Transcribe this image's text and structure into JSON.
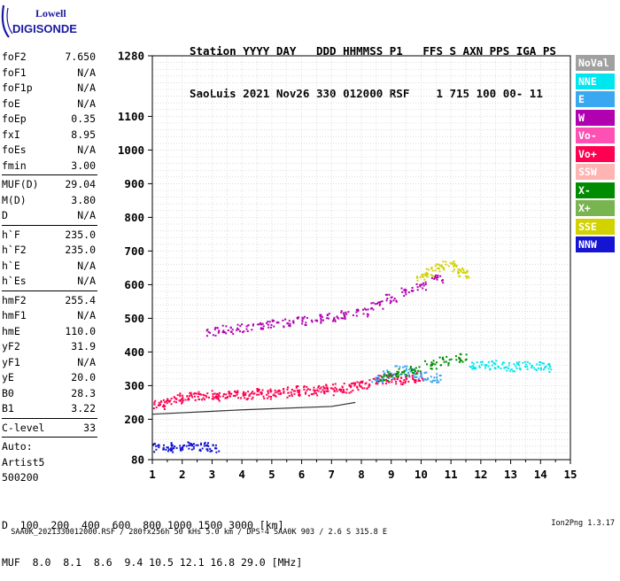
{
  "logo": {
    "top": "Lowell",
    "bottom": "DIGISONDE"
  },
  "header": {
    "line1": "Station YYYY DAY   DDD HHMMSS P1   FFS S AXN PPS IGA PS",
    "line2": "SaoLuis 2021 Nov26 330 012000 RSF    1 715 100 00- 11"
  },
  "params": {
    "group1": [
      {
        "label": "foF2",
        "value": "7.650"
      },
      {
        "label": "foF1",
        "value": "N/A"
      },
      {
        "label": "foF1p",
        "value": "N/A"
      },
      {
        "label": "foE",
        "value": "N/A"
      },
      {
        "label": "foEp",
        "value": "0.35"
      },
      {
        "label": "fxI",
        "value": "8.95"
      },
      {
        "label": "foEs",
        "value": "N/A"
      },
      {
        "label": "fmin",
        "value": "3.00"
      }
    ],
    "group2": [
      {
        "label": "MUF(D)",
        "value": "29.04"
      },
      {
        "label": "M(D)",
        "value": "3.80"
      },
      {
        "label": "D",
        "value": "N/A"
      }
    ],
    "group3": [
      {
        "label": "h`F",
        "value": "235.0"
      },
      {
        "label": "h`F2",
        "value": "235.0"
      },
      {
        "label": "h`E",
        "value": "N/A"
      },
      {
        "label": "h`Es",
        "value": "N/A"
      }
    ],
    "group4": [
      {
        "label": "hmF2",
        "value": "255.4"
      },
      {
        "label": "hmF1",
        "value": "N/A"
      },
      {
        "label": "hmE",
        "value": "110.0"
      },
      {
        "label": "yF2",
        "value": "31.9"
      },
      {
        "label": "yF1",
        "value": "N/A"
      },
      {
        "label": "yE",
        "value": "20.0"
      },
      {
        "label": "B0",
        "value": "28.3"
      },
      {
        "label": "B1",
        "value": "3.22"
      }
    ],
    "clevel": {
      "label": "C-level",
      "value": "33"
    },
    "auto": [
      "Auto:",
      "Artist5",
      "500200"
    ]
  },
  "legend": [
    {
      "label": "NoVal",
      "color": "#a0a0a0"
    },
    {
      "label": "NNE",
      "color": "#00e6f0"
    },
    {
      "label": "E",
      "color": "#3aa8f0"
    },
    {
      "label": "W",
      "color": "#b000b0"
    },
    {
      "label": "Vo-",
      "color": "#ff50b4"
    },
    {
      "label": "Vo+",
      "color": "#ff0050"
    },
    {
      "label": "SSW",
      "color": "#ffb4b4"
    },
    {
      "label": "X-",
      "color": "#008c00"
    },
    {
      "label": "X+",
      "color": "#78b450"
    },
    {
      "label": "SSE",
      "color": "#d2d200"
    },
    {
      "label": "NNW",
      "color": "#1414d2"
    }
  ],
  "chart_data": {
    "type": "scatter",
    "title": "",
    "xlabel": "",
    "ylabel": "",
    "xlim": [
      1,
      15
    ],
    "ylim": [
      80,
      1280
    ],
    "grid": true,
    "legend_position": "right",
    "x_ticks": [
      1,
      2,
      3,
      4,
      5,
      6,
      7,
      8,
      9,
      10,
      11,
      12,
      13,
      14,
      15
    ],
    "y_ticks": [
      80,
      200,
      300,
      400,
      500,
      600,
      700,
      800,
      900,
      1000,
      1100,
      1280
    ],
    "series": [
      {
        "name": "Vo+",
        "x": [
          1.2,
          1.5,
          1.8,
          2.1,
          2.4,
          2.7,
          3.0,
          3.3,
          3.6,
          3.9,
          4.2,
          4.5,
          4.8,
          5.1,
          5.4,
          5.7,
          6.0,
          6.3,
          6.6,
          6.9,
          7.2,
          7.5,
          7.8,
          8.1,
          8.4,
          8.7,
          9.0,
          9.3,
          9.6,
          9.9
        ],
        "y": [
          245,
          252,
          262,
          270,
          268,
          272,
          276,
          268,
          272,
          278,
          274,
          280,
          276,
          282,
          286,
          280,
          288,
          284,
          292,
          286,
          296,
          292,
          300,
          306,
          314,
          320,
          326,
          318,
          322,
          328
        ]
      },
      {
        "name": "W",
        "x": [
          3.0,
          3.5,
          4.0,
          4.5,
          5.0,
          5.5,
          6.0,
          6.5,
          7.0,
          7.5,
          8.0,
          8.5,
          9.0,
          9.5,
          10.0,
          10.5
        ],
        "y": [
          462,
          468,
          472,
          478,
          484,
          488,
          494,
          500,
          506,
          512,
          520,
          540,
          560,
          580,
          600,
          620
        ]
      },
      {
        "name": "SSE",
        "x": [
          10.0,
          10.3,
          10.6,
          10.9,
          11.2,
          11.4
        ],
        "y": [
          625,
          640,
          650,
          660,
          648,
          635
        ]
      },
      {
        "name": "NNE",
        "x": [
          11.8,
          12.2,
          12.6,
          13.0,
          13.4,
          13.8,
          14.2
        ],
        "y": [
          360,
          362,
          365,
          358,
          362,
          360,
          356
        ]
      },
      {
        "name": "NNW",
        "x": [
          1.2,
          1.5,
          1.8,
          2.1,
          2.4,
          2.7,
          3.0
        ],
        "y": [
          118,
          120,
          116,
          122,
          118,
          120,
          117
        ]
      },
      {
        "name": "E",
        "x": [
          8.5,
          8.9,
          9.3,
          9.7,
          10.1,
          10.5
        ],
        "y": [
          320,
          335,
          348,
          340,
          330,
          325
        ]
      },
      {
        "name": "X-",
        "x": [
          8.8,
          9.3,
          9.8,
          10.3,
          10.8,
          11.3
        ],
        "y": [
          330,
          340,
          350,
          365,
          375,
          385
        ]
      }
    ]
  },
  "footer": {
    "d_label": "D",
    "d_values": "  100  200  400  600  800 1000 1500 3000 [km]",
    "muf_label": "MUF",
    "muf_values": "  8.0  8.1  8.6  9.4 10.5 12.1 16.8 29.0 [MHz]"
  },
  "bottom": {
    "left": "SAA0K_2021330012000.RSF / 280fx256h 50 kHs 5.0 km / DPS-4 SAA0K 903 / 2.6 S 315.8 E",
    "right": "Ion2Png 1.3.17"
  }
}
